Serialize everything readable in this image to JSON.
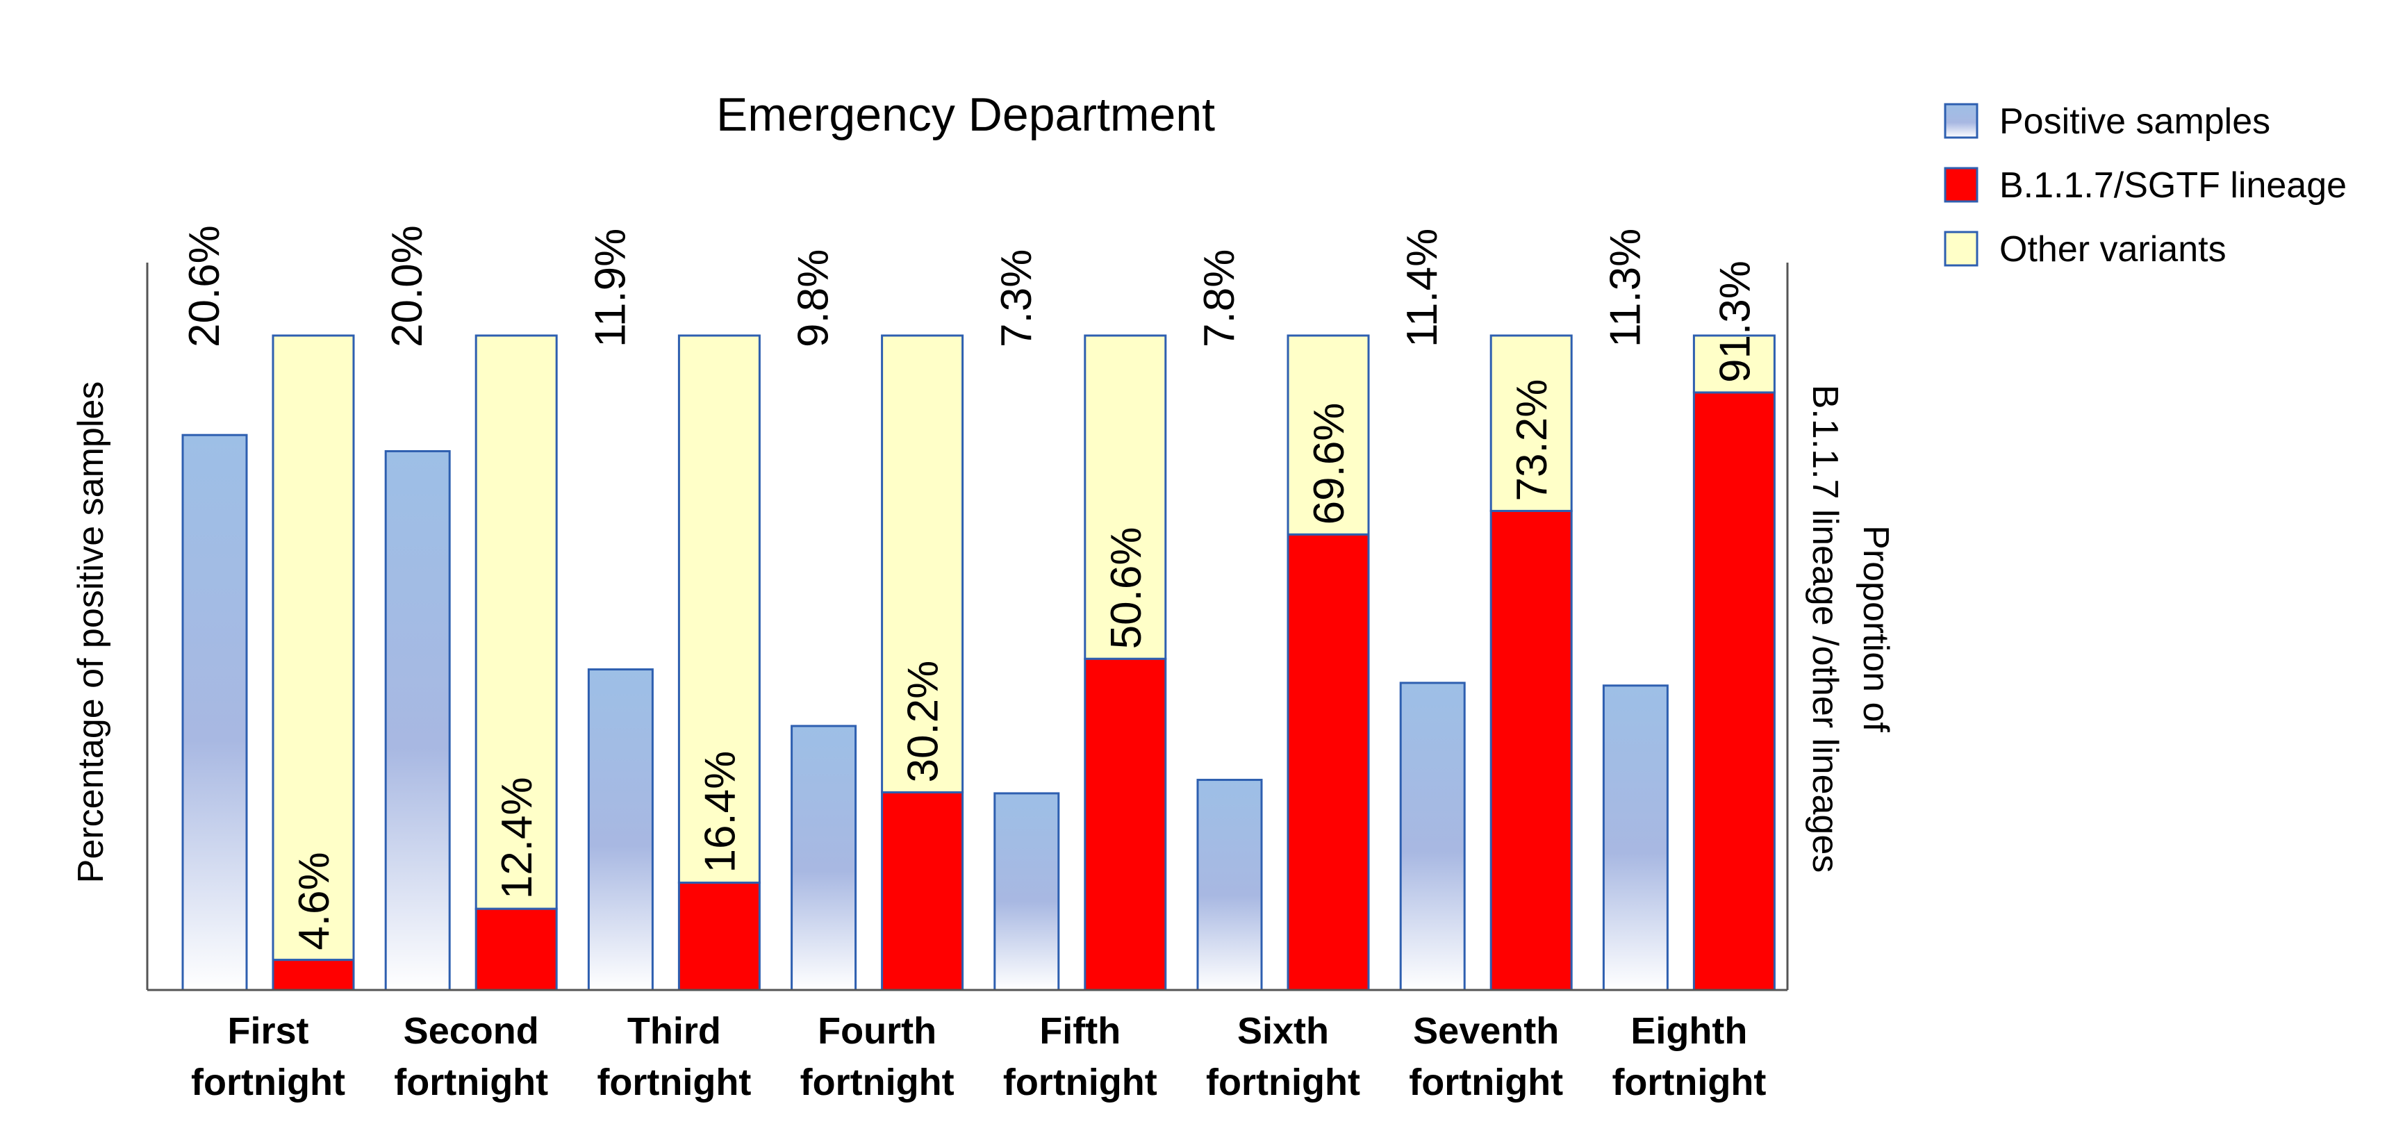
{
  "chart_data": {
    "type": "bar",
    "title": "Emergency Department",
    "ylabel": "Percentage of positive samples",
    "y2label_line1": "Proportion of",
    "y2label_line2": "B.1.1.7 lineage /other lineages",
    "ylim": [
      0,
      27
    ],
    "y2lim": [
      0,
      100
    ],
    "categories": [
      [
        "First",
        "fortnight"
      ],
      [
        "Second",
        "fortnight"
      ],
      [
        "Third",
        "fortnight"
      ],
      [
        "Fourth",
        "fortnight"
      ],
      [
        "Fifth",
        "fortnight"
      ],
      [
        "Sixth",
        "fortnight"
      ],
      [
        "Seventh",
        "fortnight"
      ],
      [
        "Eighth",
        "fortnight"
      ]
    ],
    "series": [
      {
        "name": "Positive samples",
        "axis": "left",
        "values": [
          20.6,
          20.0,
          11.9,
          9.8,
          7.3,
          7.8,
          11.4,
          11.3
        ],
        "labels": [
          "20.6%",
          "20.0%",
          "11.9%",
          "9.8%",
          "7.3%",
          "7.8%",
          "11.4%",
          "11.3%"
        ]
      },
      {
        "name": "B.1.1.7/SGTF lineage",
        "axis": "right",
        "stack": "variants",
        "values": [
          4.6,
          12.4,
          16.4,
          30.2,
          50.6,
          69.6,
          73.2,
          91.3
        ],
        "labels": [
          "4.6%",
          "12.4%",
          "16.4%",
          "30.2%",
          "50.6%",
          "69.6%",
          "73.2%",
          "91.3%"
        ]
      },
      {
        "name": "Other variants",
        "axis": "right",
        "stack": "variants",
        "values": [
          95.4,
          87.6,
          83.6,
          69.8,
          49.4,
          30.4,
          26.8,
          8.7
        ]
      }
    ],
    "legend": {
      "position": "top-right",
      "items": [
        "Positive samples",
        "B.1.1.7/SGTF lineage",
        "Other variants"
      ]
    },
    "colors": {
      "positive_top": "#9dbfe6",
      "positive_mid": "#a8b8e2",
      "positive_bottom": "#ffffff",
      "lineage": "#ff0000",
      "other": "#ffffc8",
      "outline": "#2e5fb0",
      "axis": "#555555"
    }
  }
}
